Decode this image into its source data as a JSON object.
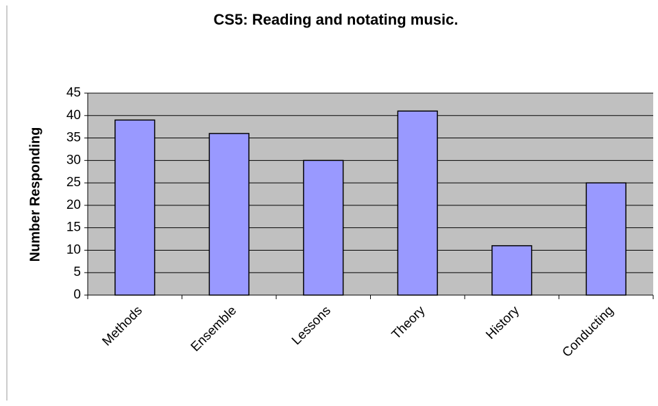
{
  "chart_data": {
    "type": "bar",
    "title": "CS5: Reading and notating music.",
    "y_label": "Number Responding",
    "categories": [
      "Methods",
      "Ensemble",
      "Lessons",
      "Theory",
      "History",
      "Conducting"
    ],
    "values": [
      39,
      36,
      30,
      41,
      11,
      25
    ],
    "color": "#9999ff",
    "ylim": [
      0,
      45
    ],
    "yticks": [
      0,
      5,
      10,
      15,
      20,
      25,
      30,
      35,
      40,
      45
    ],
    "grid": true
  }
}
